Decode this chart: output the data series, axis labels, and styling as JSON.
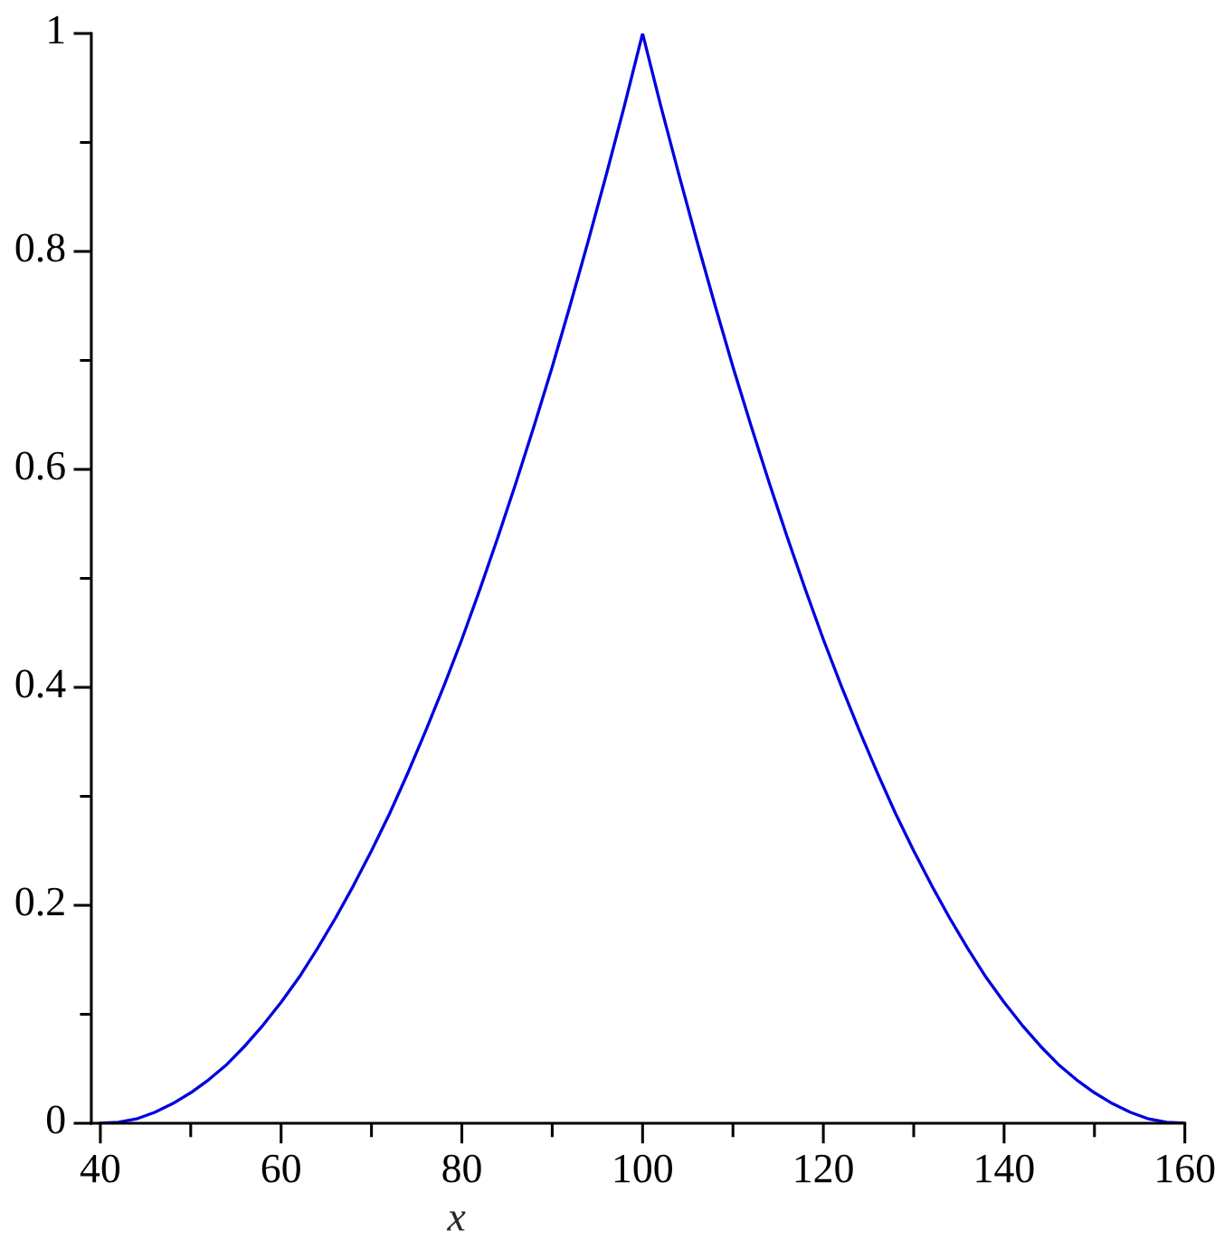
{
  "chart_data": {
    "type": "line",
    "xlabel": "x",
    "x": [
      40,
      42,
      44,
      46,
      48,
      50,
      52,
      54,
      56,
      58,
      60,
      62,
      64,
      66,
      68,
      70,
      72,
      74,
      76,
      78,
      80,
      82,
      84,
      86,
      88,
      90,
      92,
      94,
      96,
      98,
      100,
      102,
      104,
      106,
      108,
      110,
      112,
      114,
      116,
      118,
      120,
      122,
      124,
      126,
      128,
      130,
      132,
      134,
      136,
      138,
      140,
      142,
      144,
      146,
      148,
      150,
      152,
      154,
      156,
      158,
      160
    ],
    "series": [
      {
        "color": "#0000e0",
        "values": [
          0,
          0.001,
          0.004,
          0.01,
          0.018,
          0.028,
          0.04,
          0.054,
          0.071,
          0.09,
          0.111,
          0.134,
          0.16,
          0.188,
          0.218,
          0.25,
          0.284,
          0.321,
          0.36,
          0.401,
          0.444,
          0.49,
          0.538,
          0.588,
          0.64,
          0.694,
          0.751,
          0.81,
          0.871,
          0.934,
          1,
          0.934,
          0.871,
          0.81,
          0.751,
          0.694,
          0.64,
          0.588,
          0.538,
          0.49,
          0.444,
          0.401,
          0.36,
          0.321,
          0.284,
          0.25,
          0.218,
          0.188,
          0.16,
          0.134,
          0.111,
          0.09,
          0.071,
          0.054,
          0.04,
          0.028,
          0.018,
          0.01,
          0.004,
          0.001,
          0
        ]
      }
    ],
    "xlim": [
      39,
      160
    ],
    "ylim": [
      0,
      1
    ],
    "xticks": [
      40,
      {
        "value": 50,
        "label": null
      },
      60,
      {
        "value": 70,
        "label": null
      },
      80,
      {
        "value": 90,
        "label": null
      },
      100,
      {
        "value": 110,
        "label": null
      },
      120,
      {
        "value": 130,
        "label": null
      },
      140,
      {
        "value": 150,
        "label": null
      },
      160
    ],
    "yticks": [
      0,
      {
        "value": 0.1,
        "label": null
      },
      0.2,
      {
        "value": 0.3,
        "label": null
      },
      0.4,
      {
        "value": 0.5,
        "label": null
      },
      0.6,
      {
        "value": 0.7,
        "label": null
      },
      0.8,
      {
        "value": 0.9,
        "label": null
      },
      1
    ],
    "grid": false,
    "legend": false,
    "marker": "none",
    "line_style": "solid"
  }
}
